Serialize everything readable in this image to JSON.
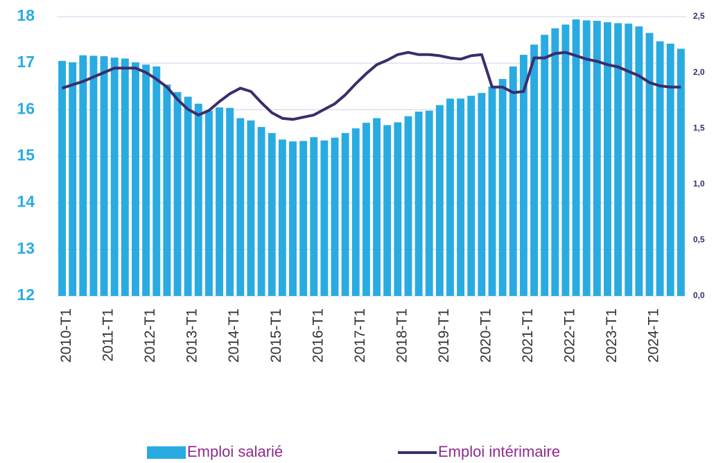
{
  "chart_data": {
    "type": "bar_line",
    "categories": [
      "2010-T1",
      null,
      null,
      null,
      "2011-T1",
      null,
      null,
      null,
      "2012-T1",
      null,
      null,
      null,
      "2013-T1",
      null,
      null,
      null,
      "2014-T1",
      null,
      null,
      null,
      "2015-T1",
      null,
      null,
      null,
      "2016-T1",
      null,
      null,
      null,
      "2017-T1",
      null,
      null,
      null,
      "2018-T1",
      null,
      null,
      null,
      "2019-T1",
      null,
      null,
      null,
      "2020-T1",
      null,
      null,
      null,
      "2021-T1",
      null,
      null,
      null,
      "2022-T1",
      null,
      null,
      null,
      "2023-T1",
      null,
      null,
      null,
      "2024-T1",
      null,
      null,
      null
    ],
    "series": [
      {
        "name": "Emploi salarié",
        "color": "#29abe2",
        "kind": "bar",
        "values": [
          17.05,
          17.02,
          17.17,
          17.16,
          17.15,
          17.12,
          17.1,
          17.02,
          16.97,
          16.93,
          16.54,
          16.38,
          16.28,
          16.13,
          15.98,
          16.05,
          16.04,
          15.82,
          15.77,
          15.63,
          15.5,
          15.36,
          15.32,
          15.33,
          15.41,
          15.34,
          15.4,
          15.5,
          15.6,
          15.72,
          15.82,
          15.67,
          15.73,
          15.86,
          15.96,
          15.98,
          16.1,
          16.24,
          16.24,
          16.3,
          16.36,
          16.5,
          16.66,
          16.93,
          17.18,
          17.4,
          17.61,
          17.75,
          17.83,
          17.94,
          17.92,
          17.91,
          17.88,
          17.86,
          17.85,
          17.79,
          17.65,
          17.47,
          17.42,
          17.31
        ]
      },
      {
        "name": "Emploi intérimaire",
        "color": "#3b2d6b",
        "kind": "line",
        "axis": "y2",
        "values": [
          1.86,
          1.89,
          1.92,
          1.96,
          2.0,
          2.04,
          2.04,
          2.04,
          2.0,
          1.94,
          1.87,
          1.76,
          1.67,
          1.62,
          1.66,
          1.74,
          1.81,
          1.86,
          1.83,
          1.73,
          1.64,
          1.59,
          1.58,
          1.6,
          1.62,
          1.67,
          1.72,
          1.8,
          1.9,
          1.99,
          2.07,
          2.11,
          2.16,
          2.18,
          2.16,
          2.16,
          2.15,
          2.13,
          2.12,
          2.15,
          2.16,
          1.87,
          1.87,
          1.82,
          1.83,
          2.13,
          2.13,
          2.17,
          2.18,
          2.15,
          2.12,
          2.1,
          2.07,
          2.05,
          2.01,
          1.97,
          1.91,
          1.88,
          1.87,
          1.87
        ]
      }
    ],
    "ylim": [
      12,
      18
    ],
    "yticks": [
      12,
      13,
      14,
      15,
      16,
      17,
      18
    ],
    "y2lim": [
      0,
      2.5
    ],
    "y2ticks": [
      {
        "value": 0,
        "label": "0,0"
      },
      {
        "value": 0.5,
        "label": "0,5"
      },
      {
        "value": 1,
        "label": "1,0"
      },
      {
        "value": 1.5,
        "label": "1,5"
      },
      {
        "value": 2,
        "label": "2,0"
      },
      {
        "value": 2.5,
        "label": "2,5"
      }
    ],
    "grid": true,
    "legend": "bottom"
  }
}
